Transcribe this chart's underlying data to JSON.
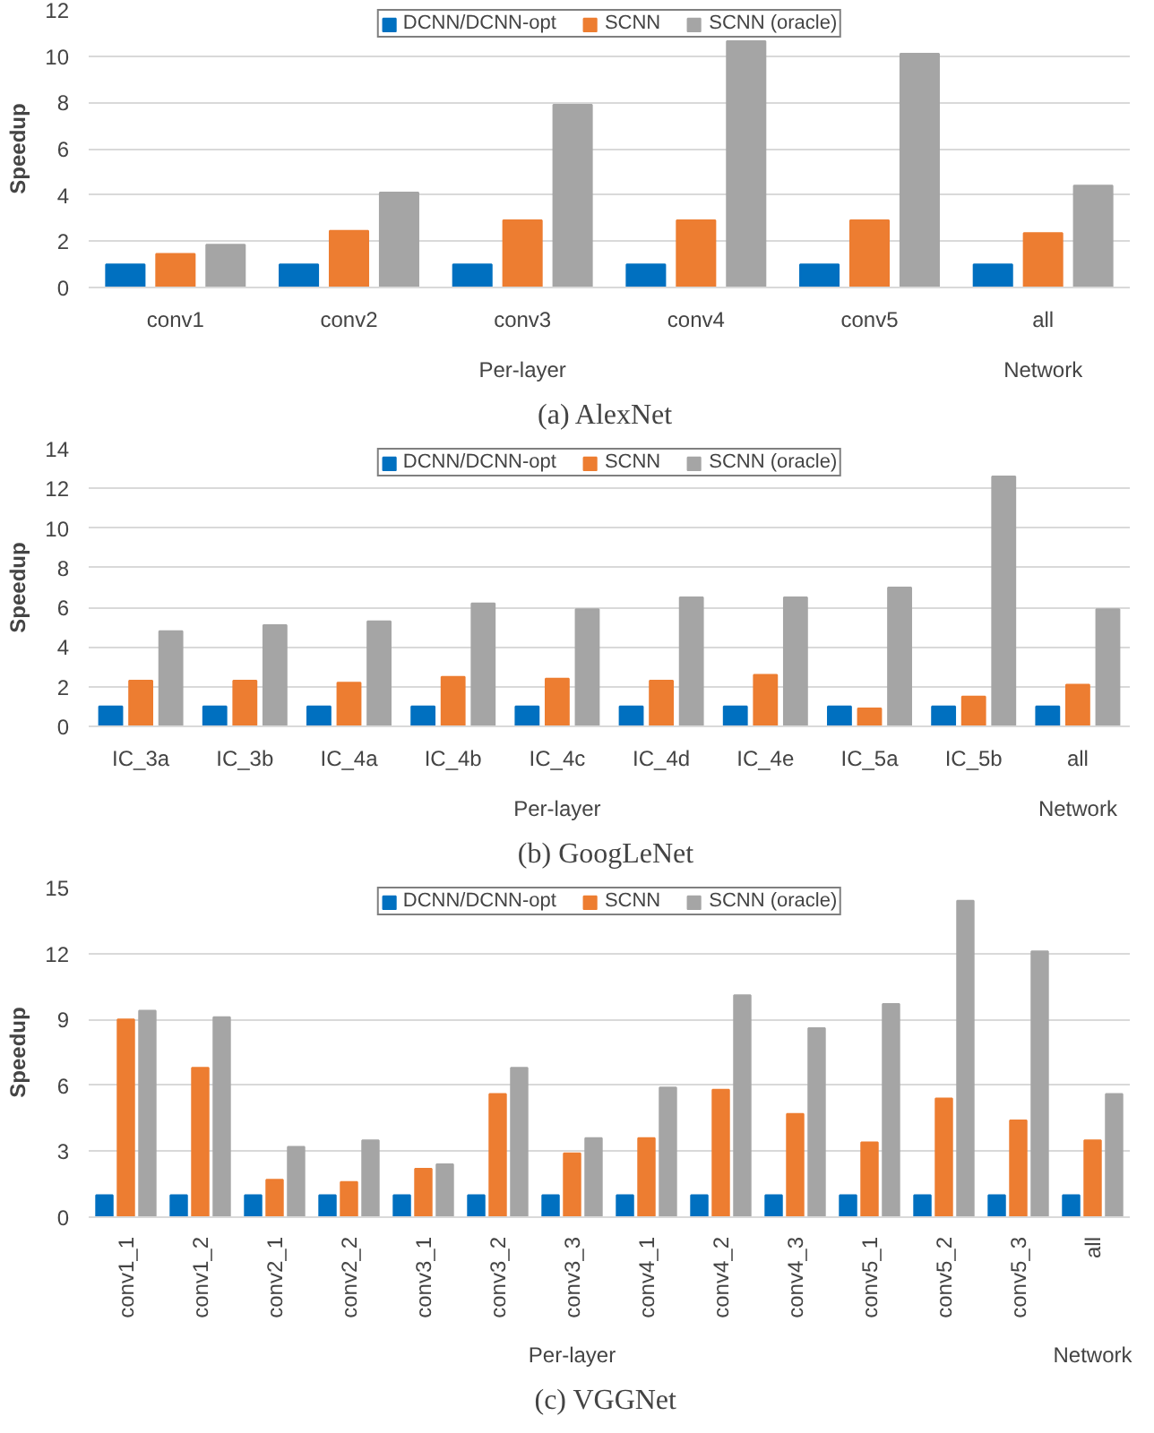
{
  "chart_data": [
    {
      "type": "bar",
      "title": "(a)  AlexNet",
      "ylabel": "Speedup",
      "categories": [
        "conv1",
        "conv2",
        "conv3",
        "conv4",
        "conv5",
        "all"
      ],
      "series": [
        {
          "name": "DCNN/DCNN-opt",
          "color": "#0070c0",
          "values": [
            1,
            1,
            1,
            1,
            1,
            1
          ]
        },
        {
          "name": "SCNN",
          "color": "#ed7d31",
          "values": [
            1.45,
            2.45,
            2.9,
            2.9,
            2.9,
            2.35
          ]
        },
        {
          "name": "SCNN (oracle)",
          "color": "#a5a5a5",
          "values": [
            1.85,
            4.1,
            7.9,
            10.65,
            10.1,
            4.4
          ]
        }
      ],
      "ylim": [
        0,
        12
      ],
      "yticks": [
        0,
        2,
        4,
        6,
        8,
        10,
        12
      ],
      "grid": "y",
      "legend": "top",
      "annotations": [
        "Per-layer",
        "Network"
      ]
    },
    {
      "type": "bar",
      "title": "(b)  GoogLeNet",
      "ylabel": "Speedup",
      "categories": [
        "IC_3a",
        "IC_3b",
        "IC_4a",
        "IC_4b",
        "IC_4c",
        "IC_4d",
        "IC_4e",
        "IC_5a",
        "IC_5b",
        "all"
      ],
      "series": [
        {
          "name": "DCNN/DCNN-opt",
          "color": "#0070c0",
          "values": [
            1,
            1,
            1,
            1,
            1,
            1,
            1,
            1,
            1,
            1
          ]
        },
        {
          "name": "SCNN",
          "color": "#ed7d31",
          "values": [
            2.3,
            2.3,
            2.2,
            2.5,
            2.4,
            2.3,
            2.6,
            0.9,
            1.5,
            2.1
          ]
        },
        {
          "name": "SCNN (oracle)",
          "color": "#a5a5a5",
          "values": [
            4.8,
            5.1,
            5.3,
            6.2,
            5.9,
            6.5,
            6.5,
            7.0,
            12.6,
            5.9
          ]
        }
      ],
      "ylim": [
        0,
        14
      ],
      "yticks": [
        0,
        2,
        4,
        6,
        8,
        10,
        12,
        14
      ],
      "grid": "y",
      "legend": "top",
      "annotations": [
        "Per-layer",
        "Network"
      ]
    },
    {
      "type": "bar",
      "title": "(c)  VGGNet",
      "ylabel": "Speedup",
      "categories": [
        "conv1_1",
        "conv1_2",
        "conv2_1",
        "conv2_2",
        "conv3_1",
        "conv3_2",
        "conv3_3",
        "conv4_1",
        "conv4_2",
        "conv4_3",
        "conv5_1",
        "conv5_2",
        "conv5_3",
        "all"
      ],
      "series": [
        {
          "name": "DCNN/DCNN-opt",
          "color": "#0070c0",
          "values": [
            1,
            1,
            1,
            1,
            1,
            1,
            1,
            1,
            1,
            1,
            1,
            1,
            1,
            1
          ]
        },
        {
          "name": "SCNN",
          "color": "#ed7d31",
          "values": [
            9.0,
            6.8,
            1.7,
            1.6,
            2.2,
            5.6,
            2.9,
            3.6,
            5.8,
            4.7,
            3.4,
            5.4,
            4.4,
            3.5
          ]
        },
        {
          "name": "SCNN (oracle)",
          "color": "#a5a5a5",
          "values": [
            9.4,
            9.1,
            3.2,
            3.5,
            2.4,
            6.8,
            3.6,
            5.9,
            10.1,
            8.6,
            9.7,
            14.4,
            12.1,
            5.6
          ]
        }
      ],
      "ylim": [
        0,
        15
      ],
      "yticks": [
        0,
        3,
        6,
        9,
        12,
        15
      ],
      "grid": "y",
      "legend": "top",
      "annotations": [
        "Per-layer",
        "Network"
      ]
    }
  ]
}
